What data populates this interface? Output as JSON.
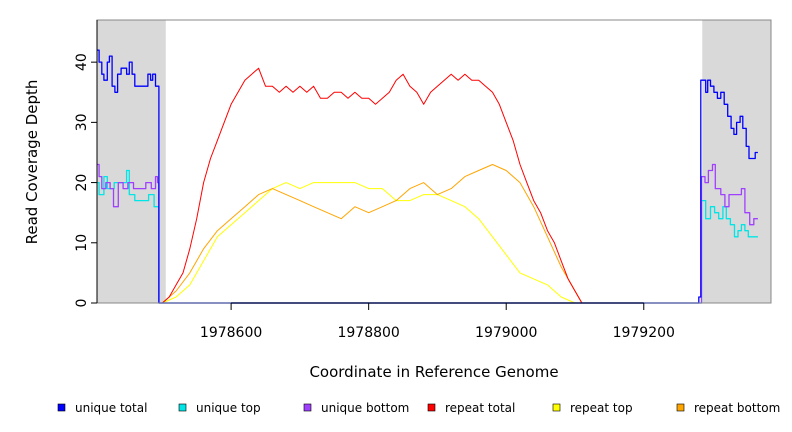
{
  "chart_data": {
    "type": "line",
    "xlabel": "Coordinate in Reference Genome",
    "ylabel": "Read Coverage Depth",
    "xlim": [
      1978405,
      1979385
    ],
    "ylim": [
      0,
      47
    ],
    "x_ticks": [
      "1978600",
      "1978800",
      "1979000",
      "1979200"
    ],
    "y_ticks": [
      "0",
      "10",
      "20",
      "30",
      "40"
    ],
    "shaded_regions": [
      [
        1978405,
        1978505
      ],
      [
        1979285,
        1979385
      ]
    ],
    "legend_position": "bottom",
    "series": [
      {
        "name": "unique total",
        "color": "#0000ff",
        "step": true,
        "points": [
          [
            1978405,
            42
          ],
          [
            1978408,
            40
          ],
          [
            1978412,
            38
          ],
          [
            1978415,
            37
          ],
          [
            1978420,
            40
          ],
          [
            1978423,
            41
          ],
          [
            1978427,
            36
          ],
          [
            1978431,
            35
          ],
          [
            1978435,
            38
          ],
          [
            1978440,
            39
          ],
          [
            1978448,
            38
          ],
          [
            1978452,
            40
          ],
          [
            1978456,
            38
          ],
          [
            1978460,
            36
          ],
          [
            1978470,
            36
          ],
          [
            1978479,
            38
          ],
          [
            1978483,
            37
          ],
          [
            1978486,
            38
          ],
          [
            1978490,
            36
          ],
          [
            1978493,
            36
          ],
          [
            1978495,
            0
          ],
          [
            1979277,
            0
          ],
          [
            1979280,
            1
          ],
          [
            1979283,
            37
          ],
          [
            1979290,
            35
          ],
          [
            1979293,
            37
          ],
          [
            1979297,
            36
          ],
          [
            1979302,
            35
          ],
          [
            1979307,
            34
          ],
          [
            1979312,
            35
          ],
          [
            1979317,
            33
          ],
          [
            1979322,
            31
          ],
          [
            1979327,
            29
          ],
          [
            1979331,
            28
          ],
          [
            1979335,
            30
          ],
          [
            1979340,
            31
          ],
          [
            1979344,
            29
          ],
          [
            1979349,
            26
          ],
          [
            1979353,
            24
          ],
          [
            1979358,
            24
          ],
          [
            1979362,
            25
          ],
          [
            1979366,
            25
          ]
        ]
      },
      {
        "name": "unique top",
        "color": "#00e5e5",
        "step": true,
        "points": [
          [
            1978405,
            20
          ],
          [
            1978408,
            18
          ],
          [
            1978415,
            21
          ],
          [
            1978420,
            19
          ],
          [
            1978430,
            20
          ],
          [
            1978440,
            20
          ],
          [
            1978448,
            22
          ],
          [
            1978452,
            18
          ],
          [
            1978460,
            17
          ],
          [
            1978470,
            17
          ],
          [
            1978480,
            18
          ],
          [
            1978488,
            16
          ],
          [
            1978493,
            16
          ],
          [
            1978495,
            0
          ],
          [
            1979280,
            0
          ],
          [
            1979284,
            17
          ],
          [
            1979290,
            14
          ],
          [
            1979297,
            16
          ],
          [
            1979303,
            15
          ],
          [
            1979309,
            14
          ],
          [
            1979315,
            16
          ],
          [
            1979320,
            14
          ],
          [
            1979326,
            13
          ],
          [
            1979332,
            11
          ],
          [
            1979337,
            12
          ],
          [
            1979342,
            13
          ],
          [
            1979347,
            12
          ],
          [
            1979352,
            11
          ],
          [
            1979358,
            11
          ],
          [
            1979362,
            11
          ],
          [
            1979366,
            11
          ]
        ]
      },
      {
        "name": "unique bottom",
        "color": "#a040ff",
        "step": true,
        "points": [
          [
            1978405,
            23
          ],
          [
            1978408,
            21
          ],
          [
            1978412,
            19
          ],
          [
            1978418,
            20
          ],
          [
            1978424,
            19
          ],
          [
            1978429,
            16
          ],
          [
            1978436,
            20
          ],
          [
            1978443,
            19
          ],
          [
            1978450,
            20
          ],
          [
            1978458,
            19
          ],
          [
            1978467,
            19
          ],
          [
            1978476,
            20
          ],
          [
            1978484,
            19
          ],
          [
            1978490,
            21
          ],
          [
            1978493,
            20
          ],
          [
            1978495,
            0
          ],
          [
            1979280,
            0
          ],
          [
            1979284,
            21
          ],
          [
            1979289,
            20
          ],
          [
            1979294,
            22
          ],
          [
            1979300,
            23
          ],
          [
            1979304,
            19
          ],
          [
            1979312,
            18
          ],
          [
            1979318,
            16
          ],
          [
            1979324,
            18
          ],
          [
            1979330,
            18
          ],
          [
            1979336,
            18
          ],
          [
            1979342,
            19
          ],
          [
            1979347,
            15
          ],
          [
            1979354,
            13
          ],
          [
            1979360,
            14
          ],
          [
            1979366,
            14
          ]
        ]
      },
      {
        "name": "repeat total",
        "color": "#ff0000",
        "step": false,
        "points": [
          [
            1978500,
            0
          ],
          [
            1978510,
            1
          ],
          [
            1978520,
            3
          ],
          [
            1978530,
            5
          ],
          [
            1978540,
            9
          ],
          [
            1978550,
            14
          ],
          [
            1978560,
            20
          ],
          [
            1978570,
            24
          ],
          [
            1978580,
            27
          ],
          [
            1978590,
            30
          ],
          [
            1978600,
            33
          ],
          [
            1978610,
            35
          ],
          [
            1978620,
            37
          ],
          [
            1978630,
            38
          ],
          [
            1978640,
            39
          ],
          [
            1978650,
            36
          ],
          [
            1978660,
            36
          ],
          [
            1978670,
            35
          ],
          [
            1978680,
            36
          ],
          [
            1978690,
            35
          ],
          [
            1978700,
            36
          ],
          [
            1978710,
            35
          ],
          [
            1978720,
            36
          ],
          [
            1978730,
            34
          ],
          [
            1978740,
            34
          ],
          [
            1978750,
            35
          ],
          [
            1978760,
            35
          ],
          [
            1978770,
            34
          ],
          [
            1978780,
            35
          ],
          [
            1978790,
            34
          ],
          [
            1978800,
            34
          ],
          [
            1978810,
            33
          ],
          [
            1978820,
            34
          ],
          [
            1978830,
            35
          ],
          [
            1978840,
            37
          ],
          [
            1978850,
            38
          ],
          [
            1978860,
            36
          ],
          [
            1978870,
            35
          ],
          [
            1978880,
            33
          ],
          [
            1978890,
            35
          ],
          [
            1978900,
            36
          ],
          [
            1978910,
            37
          ],
          [
            1978920,
            38
          ],
          [
            1978930,
            37
          ],
          [
            1978940,
            38
          ],
          [
            1978950,
            37
          ],
          [
            1978960,
            37
          ],
          [
            1978970,
            36
          ],
          [
            1978980,
            35
          ],
          [
            1978990,
            33
          ],
          [
            1979000,
            30
          ],
          [
            1979010,
            27
          ],
          [
            1979020,
            23
          ],
          [
            1979030,
            20
          ],
          [
            1979040,
            17
          ],
          [
            1979050,
            15
          ],
          [
            1979060,
            12
          ],
          [
            1979070,
            10
          ],
          [
            1979080,
            7
          ],
          [
            1979090,
            4
          ],
          [
            1979100,
            2
          ],
          [
            1979110,
            0
          ]
        ]
      },
      {
        "name": "repeat top",
        "color": "#ffff00",
        "step": false,
        "points": [
          [
            1978500,
            0
          ],
          [
            1978520,
            1
          ],
          [
            1978540,
            3
          ],
          [
            1978560,
            7
          ],
          [
            1978580,
            11
          ],
          [
            1978600,
            13
          ],
          [
            1978620,
            15
          ],
          [
            1978640,
            17
          ],
          [
            1978660,
            19
          ],
          [
            1978680,
            20
          ],
          [
            1978700,
            19
          ],
          [
            1978720,
            20
          ],
          [
            1978740,
            20
          ],
          [
            1978760,
            20
          ],
          [
            1978780,
            20
          ],
          [
            1978800,
            19
          ],
          [
            1978820,
            19
          ],
          [
            1978840,
            17
          ],
          [
            1978860,
            17
          ],
          [
            1978880,
            18
          ],
          [
            1978900,
            18
          ],
          [
            1978920,
            17
          ],
          [
            1978940,
            16
          ],
          [
            1978960,
            14
          ],
          [
            1978980,
            11
          ],
          [
            1979000,
            8
          ],
          [
            1979020,
            5
          ],
          [
            1979040,
            4
          ],
          [
            1979060,
            3
          ],
          [
            1979080,
            1
          ],
          [
            1979100,
            0
          ]
        ]
      },
      {
        "name": "repeat bottom",
        "color": "#ffa500",
        "step": false,
        "points": [
          [
            1978500,
            0
          ],
          [
            1978520,
            2
          ],
          [
            1978540,
            5
          ],
          [
            1978560,
            9
          ],
          [
            1978580,
            12
          ],
          [
            1978600,
            14
          ],
          [
            1978620,
            16
          ],
          [
            1978640,
            18
          ],
          [
            1978660,
            19
          ],
          [
            1978680,
            18
          ],
          [
            1978700,
            17
          ],
          [
            1978720,
            16
          ],
          [
            1978740,
            15
          ],
          [
            1978760,
            14
          ],
          [
            1978780,
            16
          ],
          [
            1978800,
            15
          ],
          [
            1978820,
            16
          ],
          [
            1978840,
            17
          ],
          [
            1978860,
            19
          ],
          [
            1978880,
            20
          ],
          [
            1978900,
            18
          ],
          [
            1978920,
            19
          ],
          [
            1978940,
            21
          ],
          [
            1978960,
            22
          ],
          [
            1978980,
            23
          ],
          [
            1979000,
            22
          ],
          [
            1979020,
            20
          ],
          [
            1979040,
            16
          ],
          [
            1979060,
            11
          ],
          [
            1979080,
            6
          ],
          [
            1979100,
            2
          ],
          [
            1979110,
            0
          ]
        ]
      }
    ]
  }
}
